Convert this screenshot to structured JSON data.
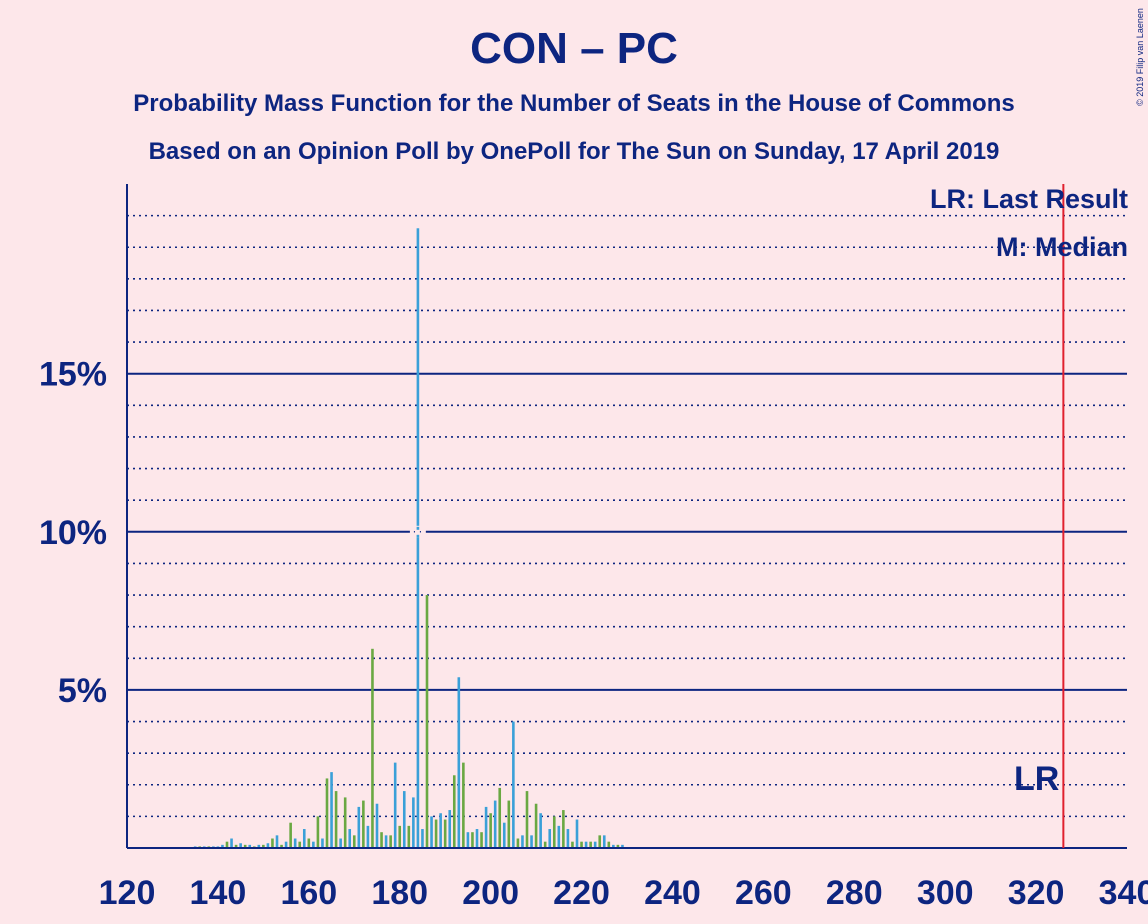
{
  "title": "CON – PC",
  "subtitle1": "Probability Mass Function for the Number of Seats in the House of Commons",
  "subtitle2": "Based on an Opinion Poll by OnePoll for The Sun on Sunday, 17 April 2019",
  "legend": {
    "lr": "LR: Last Result",
    "m": "M: Median"
  },
  "copyright": "© 2019 Filip van Laenen",
  "colors": {
    "background": "#fde7ea",
    "text": "#0d2580",
    "bar_primary": "#3aa0d8",
    "bar_secondary": "#6aa842",
    "last_result": "#e0202e"
  },
  "chart_data": {
    "type": "bar",
    "xlim": [
      120,
      340
    ],
    "ylim": [
      0,
      21
    ],
    "x_ticks": [
      120,
      140,
      160,
      180,
      200,
      220,
      240,
      260,
      280,
      300,
      320,
      340
    ],
    "y_ticks": [
      {
        "value": 5,
        "label": "5%"
      },
      {
        "value": 10,
        "label": "10%"
      },
      {
        "value": 15,
        "label": "15%"
      }
    ],
    "y_minor_step": 1,
    "last_result": {
      "seat": 326,
      "label": "LR"
    },
    "median": {
      "seat": 184,
      "label": "M"
    },
    "series": [
      {
        "role": "primary",
        "x": [
          135,
          137,
          139,
          140,
          141,
          143,
          145,
          147,
          149,
          151,
          153,
          155,
          157,
          159,
          161,
          163,
          165,
          167,
          169,
          171,
          173,
          175,
          177,
          179,
          181,
          183,
          184,
          185,
          187,
          189,
          191,
          193,
          195,
          197,
          199,
          201,
          203,
          205,
          207,
          209,
          211,
          213,
          215,
          217,
          219,
          221,
          223,
          225,
          227,
          229
        ],
        "values": [
          0.05,
          0.05,
          0.05,
          0.05,
          0.1,
          0.3,
          0.15,
          0.1,
          0.1,
          0.15,
          0.4,
          0.2,
          0.3,
          0.6,
          0.2,
          0.3,
          2.4,
          0.3,
          0.6,
          1.3,
          0.7,
          1.4,
          0.4,
          2.7,
          1.8,
          1.6,
          19.6,
          0.6,
          1.0,
          1.1,
          1.2,
          5.4,
          0.5,
          0.6,
          1.3,
          1.5,
          0.8,
          4.0,
          0.4,
          0.4,
          1.1,
          0.6,
          0.7,
          0.6,
          0.9,
          0.2,
          0.2,
          0.4,
          0.1,
          0.1
        ]
      },
      {
        "role": "secondary",
        "x": [
          136,
          138,
          142,
          144,
          146,
          148,
          150,
          152,
          154,
          156,
          158,
          160,
          162,
          164,
          166,
          168,
          170,
          172,
          174,
          176,
          178,
          180,
          182,
          186,
          188,
          190,
          192,
          194,
          196,
          198,
          200,
          202,
          204,
          206,
          208,
          210,
          212,
          214,
          216,
          218,
          220,
          222,
          224,
          226,
          228
        ],
        "values": [
          0.05,
          0.05,
          0.2,
          0.1,
          0.1,
          0.05,
          0.1,
          0.3,
          0.1,
          0.8,
          0.2,
          0.3,
          1.0,
          2.2,
          1.8,
          1.6,
          0.4,
          1.5,
          6.3,
          0.5,
          0.4,
          0.7,
          0.7,
          8.0,
          0.9,
          0.9,
          2.3,
          2.7,
          0.5,
          0.5,
          1.1,
          1.9,
          1.5,
          0.3,
          1.8,
          1.4,
          0.2,
          1.0,
          1.2,
          0.2,
          0.2,
          0.2,
          0.4,
          0.2,
          0.1
        ]
      }
    ]
  }
}
